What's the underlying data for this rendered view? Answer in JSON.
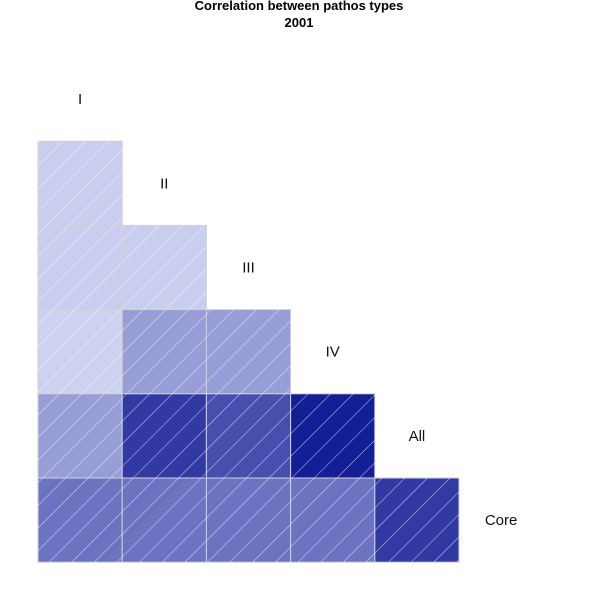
{
  "chart_data": {
    "type": "heatmap",
    "title": "Correlation between pathos types",
    "subtitle": "2001",
    "variables": [
      "I",
      "II",
      "III",
      "IV",
      "All",
      "Core"
    ],
    "cells": [
      {
        "row": "II",
        "col": "I",
        "value": 0.12
      },
      {
        "row": "III",
        "col": "I",
        "value": 0.12
      },
      {
        "row": "III",
        "col": "II",
        "value": 0.12
      },
      {
        "row": "IV",
        "col": "I",
        "value": 0.1
      },
      {
        "row": "IV",
        "col": "II",
        "value": 0.35
      },
      {
        "row": "IV",
        "col": "III",
        "value": 0.35
      },
      {
        "row": "All",
        "col": "I",
        "value": 0.35
      },
      {
        "row": "All",
        "col": "II",
        "value": 0.82
      },
      {
        "row": "All",
        "col": "III",
        "value": 0.72
      },
      {
        "row": "All",
        "col": "IV",
        "value": 0.95
      },
      {
        "row": "Core",
        "col": "I",
        "value": 0.55
      },
      {
        "row": "Core",
        "col": "II",
        "value": 0.55
      },
      {
        "row": "Core",
        "col": "III",
        "value": 0.55
      },
      {
        "row": "Core",
        "col": "IV",
        "value": 0.55
      },
      {
        "row": "Core",
        "col": "All",
        "value": 0.82
      }
    ],
    "color_low": "#e3e7fb",
    "color_high": "#0a1490",
    "grid": false
  }
}
